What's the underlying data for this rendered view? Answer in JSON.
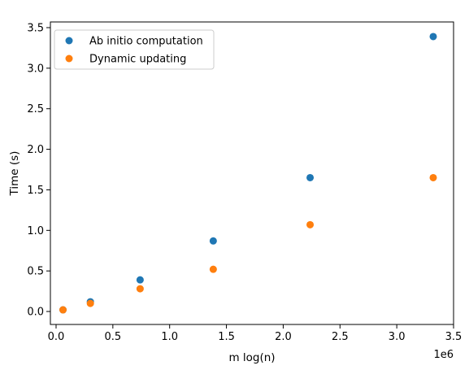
{
  "chart_data": {
    "type": "scatter",
    "title": "",
    "xlabel": "m log(n)",
    "ylabel": "Time (s)",
    "x_offset_label": "1e6",
    "xlim": [
      -50000,
      3500000
    ],
    "ylim": [
      -0.16,
      3.57
    ],
    "xticks": [
      {
        "value": 0,
        "label": "0.0"
      },
      {
        "value": 500000,
        "label": "0.5"
      },
      {
        "value": 1000000,
        "label": "1.0"
      },
      {
        "value": 1500000,
        "label": "1.5"
      },
      {
        "value": 2000000,
        "label": "2.0"
      },
      {
        "value": 2500000,
        "label": "2.5"
      },
      {
        "value": 3000000,
        "label": "3.0"
      },
      {
        "value": 3500000,
        "label": "3.5"
      }
    ],
    "yticks": [
      {
        "value": 0,
        "label": "0.0"
      },
      {
        "value": 0.5,
        "label": "0.5"
      },
      {
        "value": 1.0,
        "label": "1.0"
      },
      {
        "value": 1.5,
        "label": "1.5"
      },
      {
        "value": 2.0,
        "label": "2.0"
      },
      {
        "value": 2.5,
        "label": "2.5"
      },
      {
        "value": 3.0,
        "label": "3.0"
      },
      {
        "value": 3.5,
        "label": "3.5"
      }
    ],
    "grid": false,
    "legend_position": "upper-left",
    "series": [
      {
        "name": "Ab initio computation",
        "color": "#1f77b4",
        "x": [
          61000,
          302000,
          740000,
          1384000,
          2237000,
          3321000
        ],
        "y": [
          0.02,
          0.12,
          0.39,
          0.87,
          1.65,
          3.39
        ]
      },
      {
        "name": "Dynamic updating",
        "color": "#ff7f0e",
        "x": [
          61000,
          302000,
          740000,
          1384000,
          2237000,
          3321000
        ],
        "y": [
          0.02,
          0.1,
          0.28,
          0.52,
          1.07,
          1.65
        ]
      }
    ]
  }
}
